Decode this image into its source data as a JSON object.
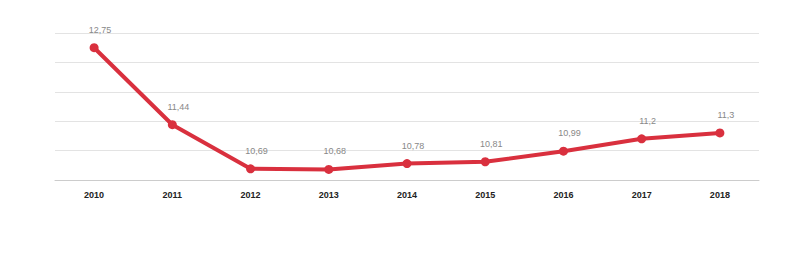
{
  "chart_data": {
    "type": "line",
    "categories": [
      "2010",
      "2011",
      "2012",
      "2013",
      "2014",
      "2015",
      "2016",
      "2017",
      "2018"
    ],
    "values": [
      12.75,
      11.44,
      10.69,
      10.68,
      10.78,
      10.81,
      10.99,
      11.2,
      11.3
    ],
    "value_labels": [
      "12,75",
      "11,44",
      "10,69",
      "10,68",
      "10,78",
      "10,81",
      "10,99",
      "11,2",
      "11,3"
    ],
    "color": "#d9303e",
    "marker": "circle",
    "line_style": "solid",
    "ylim": [
      10.5,
      13
    ],
    "yticks": [
      10.5,
      11,
      11.5,
      12,
      12.5,
      13
    ],
    "grid": true,
    "data_labels": true,
    "tick_labels": "x"
  }
}
